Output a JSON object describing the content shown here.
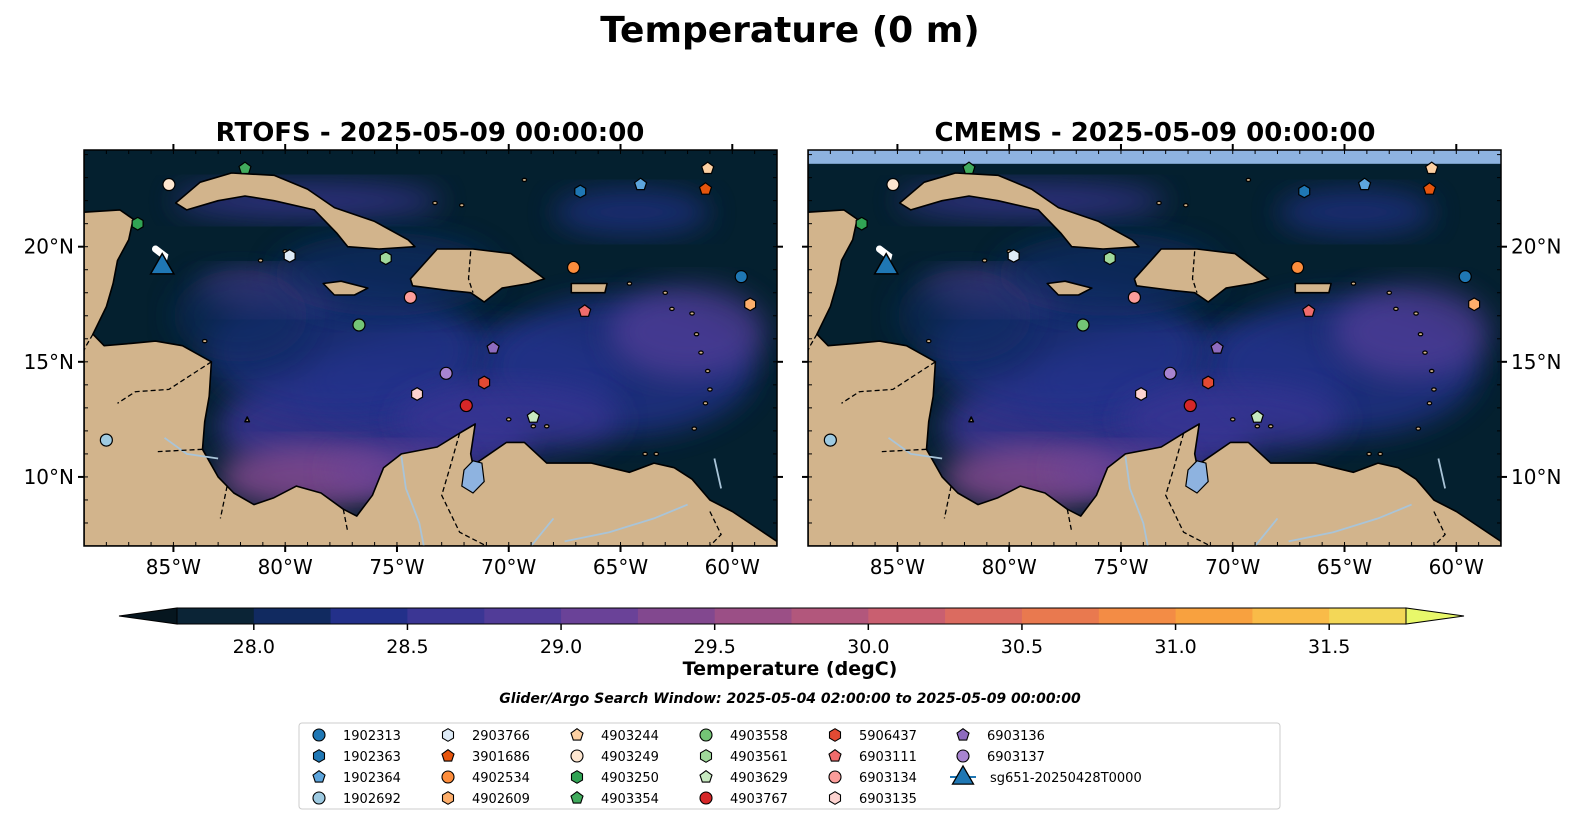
{
  "figure": {
    "title": "Temperature (0 m)",
    "search_window": "Glider/Argo Search Window: 2025-05-04 02:00:00 to 2025-05-09 00:00:00"
  },
  "colors": {
    "land": "#d2b48c",
    "ocean_cold": "#04202f",
    "lake": "#8eb3e0",
    "river": "#a9c4d8",
    "glider": "#1f77b4",
    "cmaps": [
      "#0b2436",
      "#112a60",
      "#23308a",
      "#3b3694",
      "#513c98",
      "#6a4298",
      "#82488f",
      "#9b4f86",
      "#b2577c",
      "#c95f70",
      "#db6b60",
      "#e9794f",
      "#f38c45",
      "#f8a13f",
      "#f9bb48",
      "#f3d757"
    ]
  },
  "panels": [
    {
      "title": "RTOFS - 2025-05-09 00:00:00",
      "source": "RTOFS"
    },
    {
      "title": "CMEMS - 2025-05-09 00:00:00",
      "source": "CMEMS"
    }
  ],
  "chart_data": {
    "type": "map",
    "lon_range": [
      -89.0,
      -58.0
    ],
    "lat_range": [
      7.0,
      24.2
    ],
    "x_ticks": [
      {
        "value": -85,
        "label": "85°W"
      },
      {
        "value": -80,
        "label": "80°W"
      },
      {
        "value": -75,
        "label": "75°W"
      },
      {
        "value": -70,
        "label": "70°W"
      },
      {
        "value": -65,
        "label": "65°W"
      },
      {
        "value": -60,
        "label": "60°W"
      }
    ],
    "y_ticks": [
      {
        "value": 10,
        "label": "10°N"
      },
      {
        "value": 15,
        "label": "15°N"
      },
      {
        "value": 20,
        "label": "20°N"
      }
    ],
    "colorbar": {
      "label": "Temperature (degC)",
      "vmin": 27.75,
      "vmax": 31.75,
      "step": 0.25,
      "ticks": [
        {
          "value": 28.0,
          "label": "28.0"
        },
        {
          "value": 28.5,
          "label": "28.5"
        },
        {
          "value": 29.0,
          "label": "29.0"
        },
        {
          "value": 29.5,
          "label": "29.5"
        },
        {
          "value": 30.0,
          "label": "30.0"
        },
        {
          "value": 30.5,
          "label": "30.5"
        },
        {
          "value": 31.0,
          "label": "31.0"
        },
        {
          "value": 31.5,
          "label": "31.5"
        }
      ]
    },
    "glider": {
      "name": "sg651-20250428T0000",
      "lon": -85.5,
      "lat": 19.2,
      "track": [
        [
          -85.8,
          19.9
        ],
        [
          -85.4,
          19.6
        ],
        [
          -85.5,
          19.2
        ]
      ]
    },
    "floats": [
      {
        "id": "1902313",
        "marker": "circle",
        "color": "#1f77b4",
        "lon": -59.6,
        "lat": 18.7
      },
      {
        "id": "1902363",
        "marker": "hexagon",
        "color": "#1f77b4",
        "lon": -66.8,
        "lat": 22.4
      },
      {
        "id": "1902364",
        "marker": "pentagon",
        "color": "#5da5dd",
        "lon": -64.1,
        "lat": 22.7
      },
      {
        "id": "1902692",
        "marker": "circle",
        "color": "#9ecae1",
        "lon": -88.0,
        "lat": 11.6
      },
      {
        "id": "2903766",
        "marker": "hexagon",
        "color": "#deebf7",
        "lon": -79.8,
        "lat": 19.6
      },
      {
        "id": "3901686",
        "marker": "pentagon",
        "color": "#e6550d",
        "lon": -61.2,
        "lat": 22.5
      },
      {
        "id": "4902534",
        "marker": "circle",
        "color": "#fd8d3c",
        "lon": -67.1,
        "lat": 19.1
      },
      {
        "id": "4902609",
        "marker": "hexagon",
        "color": "#fdae6b",
        "lon": -59.2,
        "lat": 17.5
      },
      {
        "id": "4903244",
        "marker": "pentagon",
        "color": "#fdd0a2",
        "lon": -61.1,
        "lat": 23.4
      },
      {
        "id": "4903249",
        "marker": "circle",
        "color": "#fde6d0",
        "lon": -85.2,
        "lat": 22.7
      },
      {
        "id": "4903250",
        "marker": "hexagon",
        "color": "#31a354",
        "lon": -86.6,
        "lat": 21.0
      },
      {
        "id": "4903354",
        "marker": "pentagon",
        "color": "#41ab5d",
        "lon": -81.8,
        "lat": 23.4
      },
      {
        "id": "4903558",
        "marker": "circle",
        "color": "#74c476",
        "lon": -76.7,
        "lat": 16.6
      },
      {
        "id": "4903561",
        "marker": "hexagon",
        "color": "#a1d99b",
        "lon": -75.5,
        "lat": 19.5
      },
      {
        "id": "4903629",
        "marker": "pentagon",
        "color": "#c7e9c0",
        "lon": -68.9,
        "lat": 12.6
      },
      {
        "id": "4903767",
        "marker": "circle",
        "color": "#d62728",
        "lon": -71.9,
        "lat": 13.1
      },
      {
        "id": "5906437",
        "marker": "hexagon",
        "color": "#e34a33",
        "lon": -71.1,
        "lat": 14.1
      },
      {
        "id": "6903111",
        "marker": "pentagon",
        "color": "#f06c6c",
        "lon": -66.6,
        "lat": 17.2
      },
      {
        "id": "6903134",
        "marker": "circle",
        "color": "#fc9d9a",
        "lon": -74.4,
        "lat": 17.8
      },
      {
        "id": "6903135",
        "marker": "hexagon",
        "color": "#fdd3d0",
        "lon": -74.1,
        "lat": 13.6
      },
      {
        "id": "6903136",
        "marker": "pentagon",
        "color": "#8e6bbf",
        "lon": -70.7,
        "lat": 15.6
      },
      {
        "id": "6903137",
        "marker": "circle",
        "color": "#a884d0",
        "lon": -72.8,
        "lat": 14.5
      }
    ]
  }
}
